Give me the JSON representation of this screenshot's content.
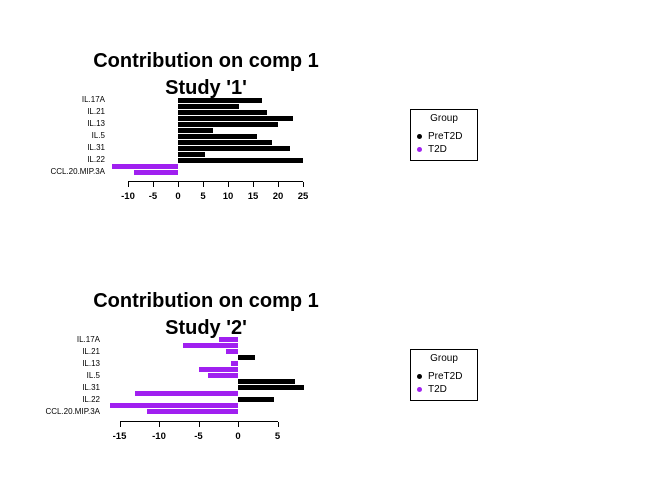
{
  "page": {
    "background": "#FFFFFF"
  },
  "group_colors": {
    "PreT2D": "#000000",
    "T2D": "#A020F0"
  },
  "chart_data": [
    {
      "type": "bar",
      "orientation": "horizontal",
      "title": "Contribution on comp 1",
      "subtitle": "Study '1'",
      "xlabel": "",
      "ylabel": "",
      "xlim": [
        -13.5,
        25
      ],
      "x_ticks": [
        -10,
        -5,
        0,
        5,
        10,
        15,
        20,
        25
      ],
      "grid": false,
      "visible_feature_labels": [
        "IL.17A",
        "IL.21",
        "IL.13",
        "IL.5",
        "IL.31",
        "IL.22",
        "CCL.20.MIP.3A"
      ],
      "bars": [
        {
          "label": "IL.17A",
          "value": 16.8,
          "group": "PreT2D"
        },
        {
          "label": "",
          "value": 12.2,
          "group": "PreT2D"
        },
        {
          "label": "IL.21",
          "value": 17.8,
          "group": "PreT2D"
        },
        {
          "label": "",
          "value": 23.0,
          "group": "PreT2D"
        },
        {
          "label": "IL.13",
          "value": 20.0,
          "group": "PreT2D"
        },
        {
          "label": "",
          "value": 7.0,
          "group": "PreT2D"
        },
        {
          "label": "IL.5",
          "value": 15.7,
          "group": "PreT2D"
        },
        {
          "label": "",
          "value": 18.7,
          "group": "PreT2D"
        },
        {
          "label": "IL.31",
          "value": 22.4,
          "group": "PreT2D"
        },
        {
          "label": "",
          "value": 5.3,
          "group": "PreT2D"
        },
        {
          "label": "IL.22",
          "value": 25.0,
          "group": "PreT2D"
        },
        {
          "label": "",
          "value": -13.3,
          "group": "T2D"
        },
        {
          "label": "CCL.20.MIP.3A",
          "value": -8.9,
          "group": "T2D"
        }
      ],
      "legend": {
        "title": "Group",
        "position": "right",
        "items": [
          {
            "label": "PreT2D",
            "group": "PreT2D"
          },
          {
            "label": "T2D",
            "group": "T2D"
          }
        ]
      }
    },
    {
      "type": "bar",
      "orientation": "horizontal",
      "title": "Contribution on comp 1",
      "subtitle": "Study '2'",
      "xlabel": "",
      "ylabel": "",
      "xlim": [
        -16.5,
        8.5
      ],
      "x_ticks": [
        -15,
        -10,
        -5,
        0,
        5
      ],
      "grid": false,
      "visible_feature_labels": [
        "IL.17A",
        "IL.21",
        "IL.13",
        "IL.5",
        "IL.31",
        "IL.22",
        "CCL.20.MIP.3A"
      ],
      "bars": [
        {
          "label": "IL.17A",
          "value": -2.4,
          "group": "T2D"
        },
        {
          "label": "",
          "value": -7.0,
          "group": "T2D"
        },
        {
          "label": "IL.21",
          "value": -1.5,
          "group": "T2D"
        },
        {
          "label": "",
          "value": 2.1,
          "group": "PreT2D"
        },
        {
          "label": "IL.13",
          "value": -0.9,
          "group": "T2D"
        },
        {
          "label": "",
          "value": -5.0,
          "group": "T2D"
        },
        {
          "label": "IL.5",
          "value": -3.8,
          "group": "T2D"
        },
        {
          "label": "",
          "value": 7.2,
          "group": "PreT2D"
        },
        {
          "label": "IL.31",
          "value": 8.3,
          "group": "PreT2D"
        },
        {
          "label": "",
          "value": -13.1,
          "group": "T2D"
        },
        {
          "label": "IL.22",
          "value": 4.5,
          "group": "PreT2D"
        },
        {
          "label": "",
          "value": -16.2,
          "group": "T2D"
        },
        {
          "label": "CCL.20.MIP.3A",
          "value": -11.5,
          "group": "T2D"
        }
      ],
      "legend": {
        "title": "Group",
        "position": "right",
        "items": [
          {
            "label": "PreT2D",
            "group": "PreT2D"
          },
          {
            "label": "T2D",
            "group": "T2D"
          }
        ]
      }
    }
  ]
}
